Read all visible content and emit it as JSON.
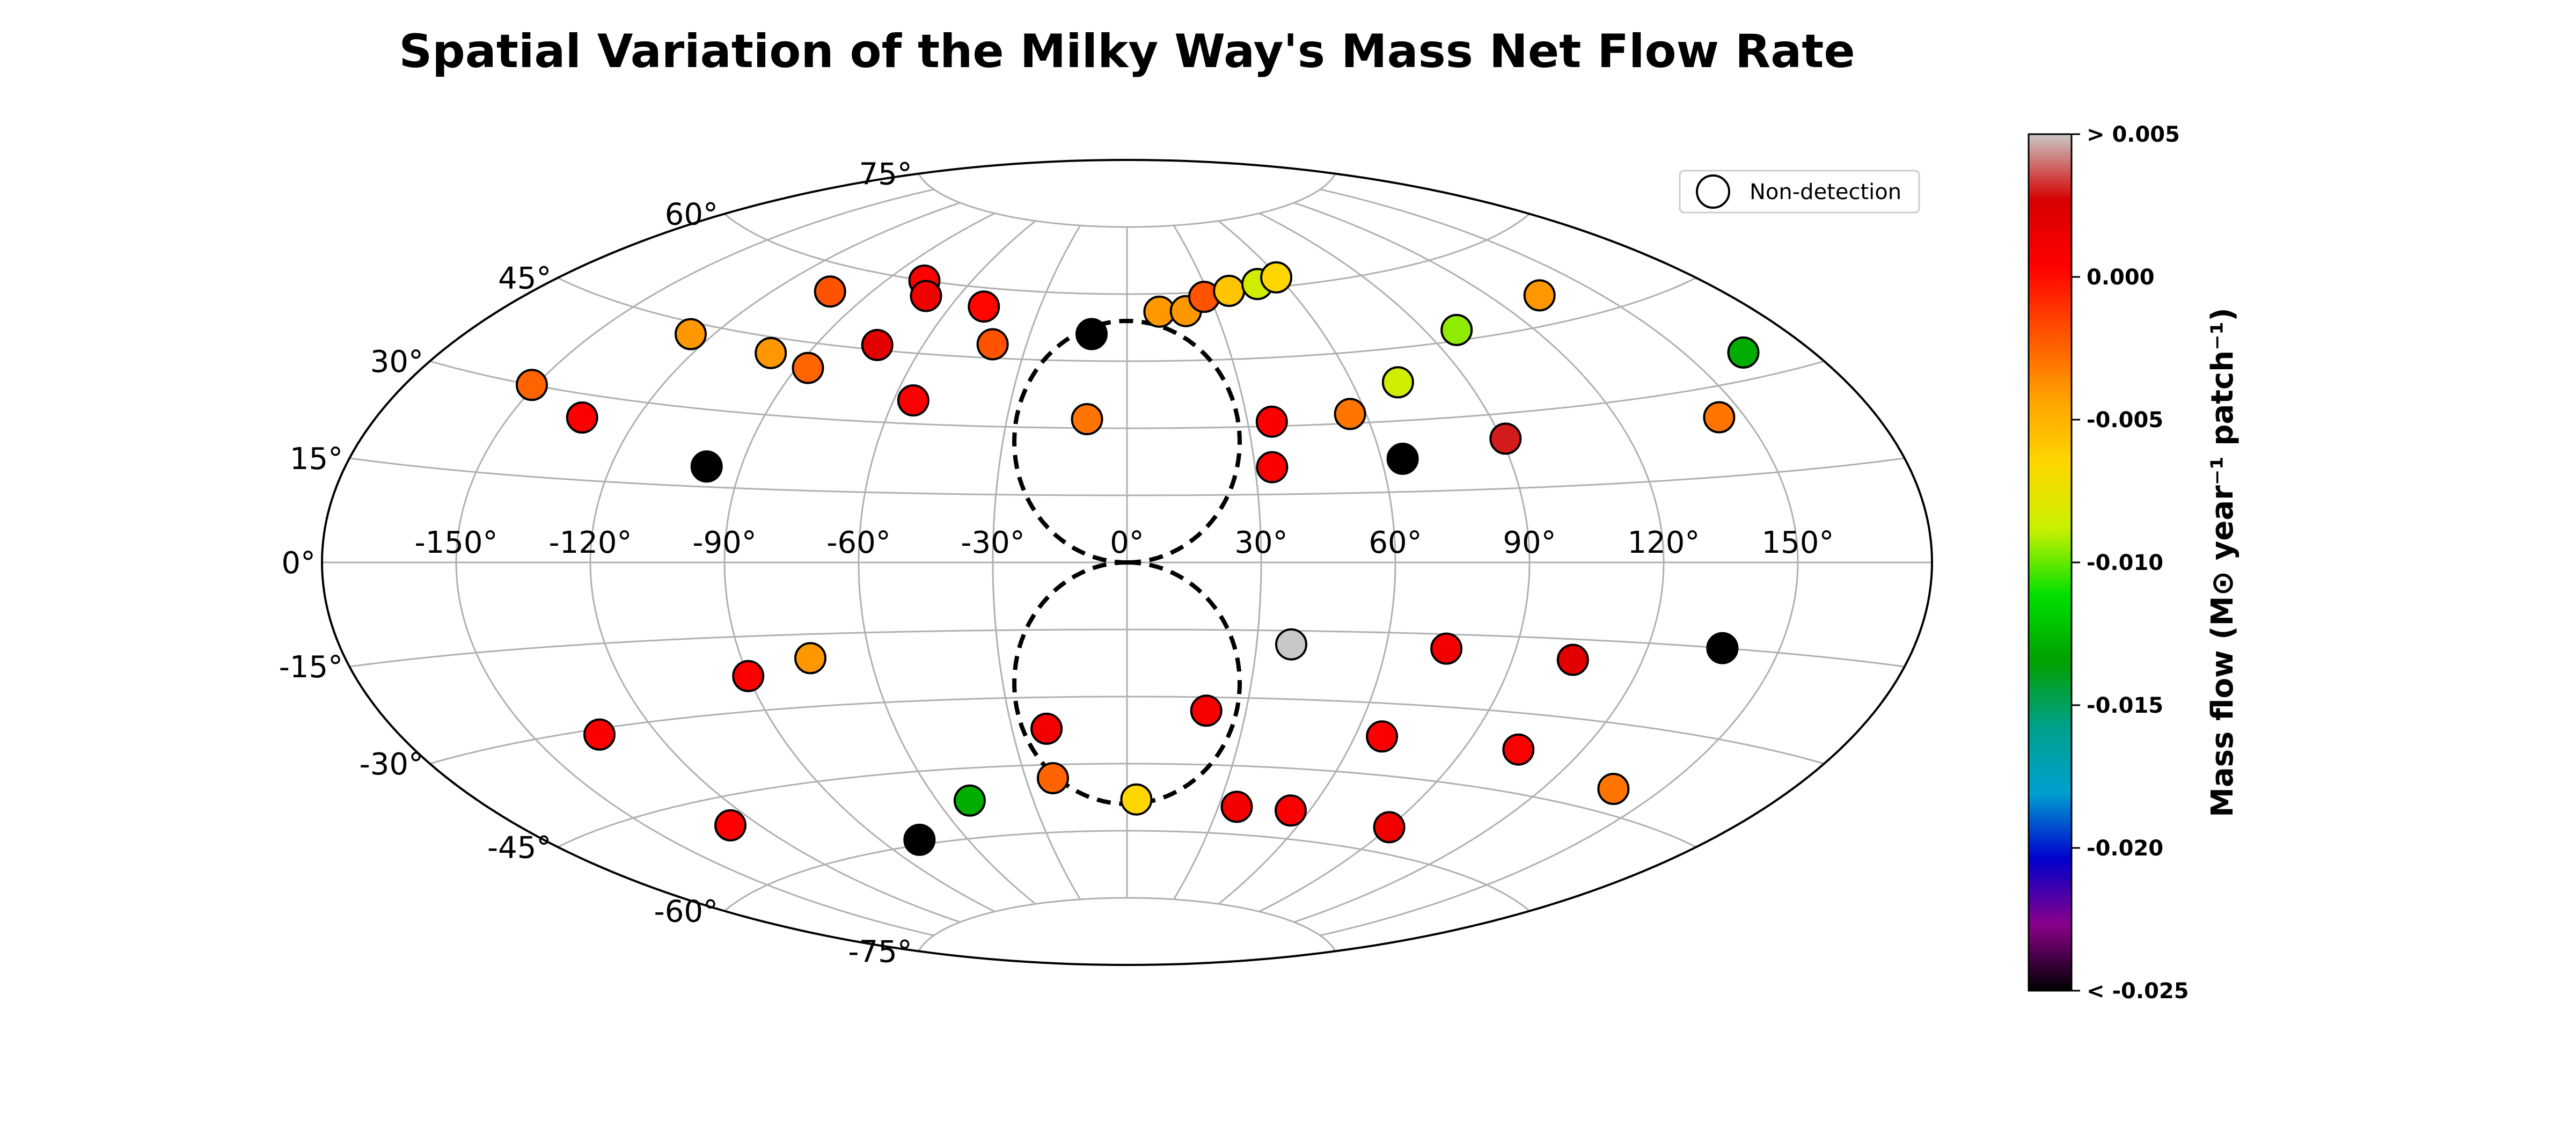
{
  "chart_data": {
    "type": "scatter",
    "projection": "aitoff",
    "title": "Spatial Variation of the Milky Way's Mass Net Flow Rate",
    "grid": true,
    "longitude_tick_labels": [
      "-150°",
      "-120°",
      "-90°",
      "-60°",
      "-30°",
      "0°",
      "30°",
      "60°",
      "90°",
      "120°",
      "150°"
    ],
    "latitude_tick_labels": [
      "-75°",
      "-60°",
      "-45°",
      "-30°",
      "-15°",
      "0°",
      "15°",
      "30°",
      "45°",
      "60°",
      "75°"
    ],
    "legend": {
      "label": "Non-detection",
      "placement": "top-right"
    },
    "colorbar": {
      "label": "Mass flow (M⊙ year⁻¹ patch⁻¹)",
      "tick_labels": [
        "> 0.005",
        "0.000",
        "-0.005",
        "-0.010",
        "-0.015",
        "-0.020",
        "< -0.025"
      ],
      "tick_values": [
        0.005,
        0.0,
        -0.005,
        -0.01,
        -0.015,
        -0.02,
        -0.025
      ],
      "range": [
        -0.025,
        0.005
      ],
      "colormap": [
        "#000000",
        "#8b008b",
        "#0000cd",
        "#00a0d0",
        "#00a08c",
        "#00a000",
        "#00e000",
        "#c8f000",
        "#ffd700",
        "#ffa000",
        "#ff5000",
        "#ff0000",
        "#d60000",
        "#c8c8c8"
      ]
    },
    "points": [
      {
        "lon": -103,
        "lat": 55,
        "value": -0.002
      },
      {
        "lon": -77,
        "lat": 60,
        "value": 0.0005
      },
      {
        "lon": -71,
        "lat": 57,
        "value": 0.0012
      },
      {
        "lon": -73,
        "lat": 46,
        "value": 0.002
      },
      {
        "lon": -49,
        "lat": 56,
        "value": 0.0002
      },
      {
        "lon": -40,
        "lat": 48,
        "value": -0.002
      },
      {
        "lon": -11,
        "lat": 51,
        "value": "non-detection"
      },
      {
        "lon": 11,
        "lat": 56,
        "value": -0.004
      },
      {
        "lon": 20,
        "lat": 56,
        "value": -0.004
      },
      {
        "lon": 28,
        "lat": 59,
        "value": -0.002
      },
      {
        "lon": 38,
        "lat": 60,
        "value": -0.0058
      },
      {
        "lon": 50,
        "lat": 61,
        "value": -0.0085
      },
      {
        "lon": 59,
        "lat": 62,
        "value": -0.0065
      },
      {
        "lon": -126,
        "lat": 43,
        "value": -0.004
      },
      {
        "lon": -100,
        "lat": 42,
        "value": -0.004
      },
      {
        "lon": -87,
        "lat": 40,
        "value": -0.0025
      },
      {
        "lon": -55,
        "lat": 35,
        "value": 0.0006
      },
      {
        "lon": -10,
        "lat": 32,
        "value": -0.003
      },
      {
        "lon": 36,
        "lat": 31,
        "value": 0.0006
      },
      {
        "lon": 56,
        "lat": 32,
        "value": -0.003
      },
      {
        "lon": 72,
        "lat": 38,
        "value": -0.0085
      },
      {
        "lon": 99,
        "lat": 47,
        "value": -0.0095
      },
      {
        "lon": 134,
        "lat": 50,
        "value": -0.004
      },
      {
        "lon": -151,
        "lat": 30,
        "value": -0.0025
      },
      {
        "lon": -133,
        "lat": 26,
        "value": 0.0006
      },
      {
        "lon": -98,
        "lat": 19,
        "value": "non-detection"
      },
      {
        "lon": 34,
        "lat": 21,
        "value": 0.0006
      },
      {
        "lon": 65,
        "lat": 22,
        "value": "non-detection"
      },
      {
        "lon": 91,
        "lat": 25,
        "value": 0.003
      },
      {
        "lon": 144,
        "lat": 25,
        "value": -0.003
      },
      {
        "lon": 164,
        "lat": 34,
        "value": -0.013
      },
      {
        "lon": -74,
        "lat": -20,
        "value": -0.004
      },
      {
        "lon": -90,
        "lat": -23,
        "value": 0.0006
      },
      {
        "lon": -134,
        "lat": -31,
        "value": 0.0006
      },
      {
        "lon": 38,
        "lat": -18,
        "value": 0.0055
      },
      {
        "lon": 74,
        "lat": -18,
        "value": 0.001
      },
      {
        "lon": 104,
        "lat": -19,
        "value": 0.002
      },
      {
        "lon": 137,
        "lat": -15,
        "value": "non-detection"
      },
      {
        "lon": -21,
        "lat": -37,
        "value": 0.001
      },
      {
        "lon": 20,
        "lat": -33,
        "value": 0.0008
      },
      {
        "lon": 67,
        "lat": -37,
        "value": 0.0006
      },
      {
        "lon": 104,
        "lat": -37,
        "value": 0.0006
      },
      {
        "lon": -128,
        "lat": -50,
        "value": 0.0004
      },
      {
        "lon": -77,
        "lat": -59,
        "value": "non-detection"
      },
      {
        "lon": -50,
        "lat": -52,
        "value": -0.013
      },
      {
        "lon": -22,
        "lat": -48,
        "value": -0.0025
      },
      {
        "lon": 3,
        "lat": -53,
        "value": -0.0065
      },
      {
        "lon": 36,
        "lat": -54,
        "value": 0.001
      },
      {
        "lon": 54,
        "lat": -54,
        "value": 0.0006
      },
      {
        "lon": 90,
        "lat": -55,
        "value": 0.0012
      },
      {
        "lon": 138,
        "lat": -41,
        "value": -0.003
      }
    ]
  }
}
